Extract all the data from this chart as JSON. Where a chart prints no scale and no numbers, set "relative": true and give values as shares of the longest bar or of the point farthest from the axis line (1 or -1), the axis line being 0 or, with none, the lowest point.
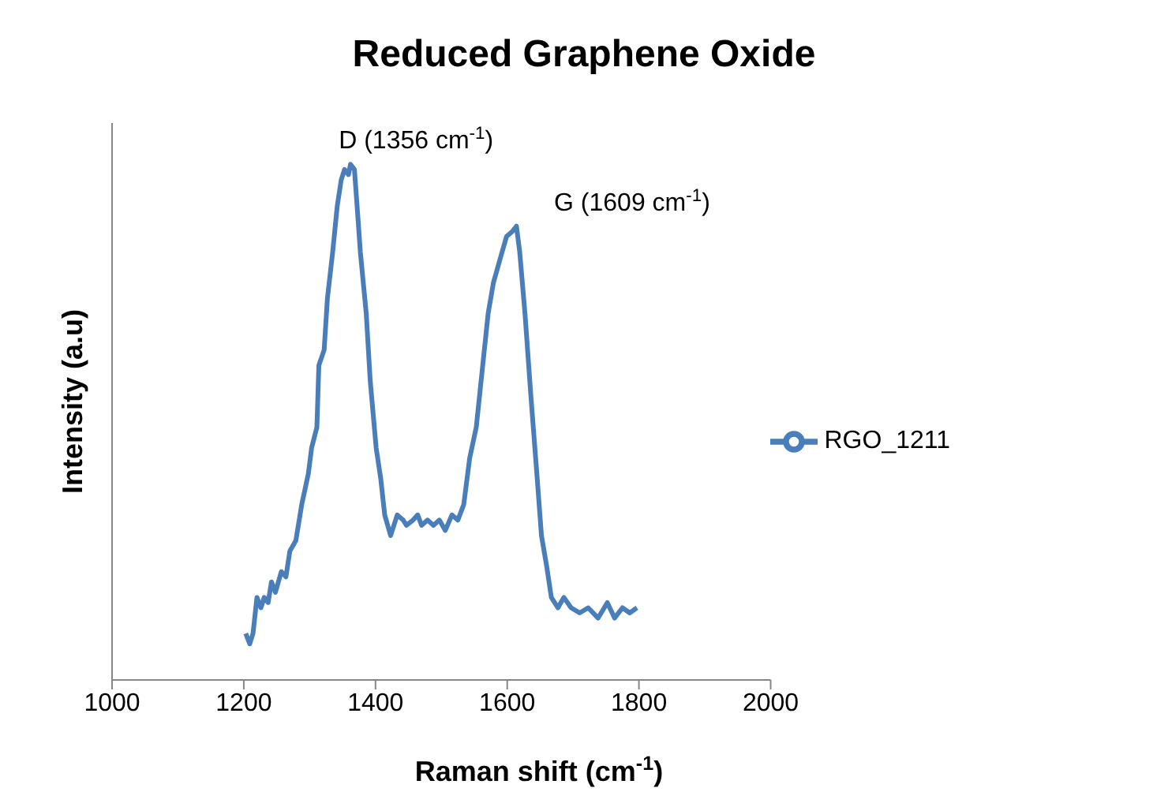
{
  "chart_data": {
    "type": "line",
    "title": "Reduced Graphene Oxide",
    "xlabel": "Raman shift (cm$^{-1}$)",
    "ylabel": "Intensity (a.u)",
    "relative": true,
    "legend": "right",
    "grid": false,
    "marker": "none",
    "xlim": [
      1000,
      2000
    ],
    "xticks": [
      1000,
      1200,
      1400,
      1600,
      1800,
      2000
    ],
    "annotations": [
      {
        "text": "D (1356 cm$^{-1}$)",
        "x": 1356,
        "y": 1.0
      },
      {
        "text": "G (1609 cm$^{-1}$)",
        "x": 1609,
        "y": 0.88
      }
    ],
    "series": [
      {
        "name": "RGO_1211",
        "color": "#4a7ebb",
        "x": [
          1203,
          1209,
          1214,
          1220,
          1226,
          1231,
          1237,
          1242,
          1248,
          1257,
          1264,
          1270,
          1279,
          1288,
          1298,
          1303,
          1311,
          1314,
          1322,
          1327,
          1335,
          1342,
          1348,
          1353,
          1359,
          1362,
          1368,
          1372,
          1377,
          1386,
          1392,
          1401,
          1408,
          1414,
          1423,
          1433,
          1442,
          1447,
          1457,
          1464,
          1470,
          1479,
          1488,
          1497,
          1506,
          1516,
          1525,
          1534,
          1543,
          1553,
          1562,
          1571,
          1579,
          1590,
          1599,
          1608,
          1614,
          1619,
          1627,
          1636,
          1645,
          1652,
          1660,
          1667,
          1677,
          1686,
          1697,
          1710,
          1723,
          1738,
          1752,
          1763,
          1775,
          1786,
          1797
        ],
        "values": [
          0.09,
          0.07,
          0.09,
          0.16,
          0.14,
          0.16,
          0.15,
          0.19,
          0.17,
          0.21,
          0.2,
          0.25,
          0.27,
          0.34,
          0.4,
          0.45,
          0.49,
          0.61,
          0.64,
          0.74,
          0.83,
          0.92,
          0.97,
          0.99,
          0.98,
          1.0,
          0.99,
          0.92,
          0.83,
          0.71,
          0.58,
          0.45,
          0.39,
          0.32,
          0.28,
          0.32,
          0.31,
          0.3,
          0.31,
          0.32,
          0.3,
          0.31,
          0.3,
          0.31,
          0.29,
          0.32,
          0.31,
          0.34,
          0.43,
          0.49,
          0.6,
          0.71,
          0.77,
          0.82,
          0.86,
          0.87,
          0.88,
          0.83,
          0.71,
          0.55,
          0.4,
          0.28,
          0.22,
          0.16,
          0.14,
          0.16,
          0.14,
          0.13,
          0.14,
          0.12,
          0.15,
          0.12,
          0.14,
          0.13,
          0.14
        ]
      }
    ]
  }
}
